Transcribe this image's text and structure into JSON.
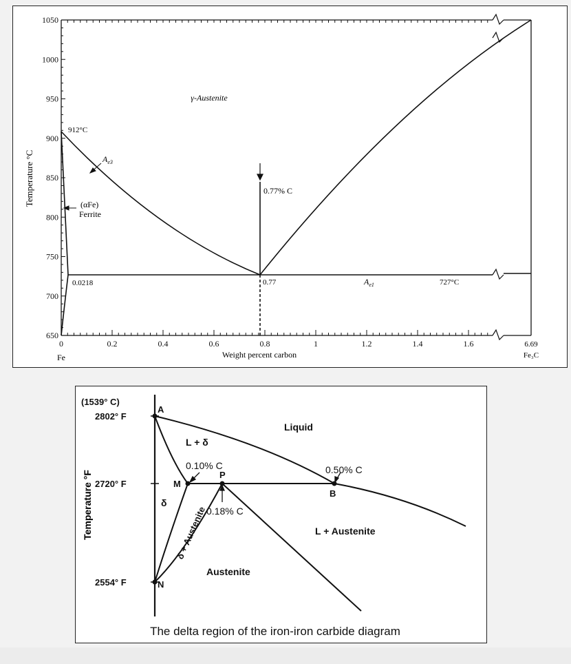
{
  "top_diagram": {
    "ylabel": "Temperature °C",
    "xlabel": "Weight percent carbon",
    "y_ticks": [
      "1050",
      "1000",
      "950",
      "900",
      "850",
      "800",
      "750",
      "700",
      "650"
    ],
    "x_ticks": [
      "0",
      "0.2",
      "0.4",
      "0.6",
      "0.8",
      "1",
      "1.2",
      "1.4",
      "1.6"
    ],
    "x_end_tick": "6.69",
    "x_left_label": "Fe",
    "x_right_label": "Fe₃C",
    "labels": {
      "austenite": "γ-Austenite",
      "t912": "912°C",
      "ae3_main": "A",
      "ae3_sub": "e3",
      "alpha_fe": "(αFe)",
      "ferrite": "Ferrite",
      "c077_pct": "0.77% C",
      "c0218": "0.0218",
      "c077": "0.77",
      "ae1_main": "A",
      "ae1_sub": "e1",
      "t727": "727°C"
    }
  },
  "bottom_diagram": {
    "ylabel": "Temperature °F",
    "caption": "The delta region of the iron-iron carbide diagram",
    "temps": {
      "t1539c": "(1539° C)",
      "t2802": "2802° F",
      "t2720": "2720° F",
      "t2554": "2554° F"
    },
    "points": {
      "A": "A",
      "M": "M",
      "P": "P",
      "B": "B",
      "N": "N"
    },
    "regions": {
      "liquid": "Liquid",
      "l_delta": "L + δ",
      "delta": "δ",
      "delta_austenite": "δ + Austenite",
      "l_austenite": "L + Austenite",
      "austenite": "Austenite"
    },
    "compositions": {
      "c010": "0.10% C",
      "c050": "0.50% C",
      "c018": "0.18% C"
    }
  },
  "colors": {
    "ink": "#111111",
    "background": "#f2f2f2",
    "panel": "#ffffff"
  }
}
